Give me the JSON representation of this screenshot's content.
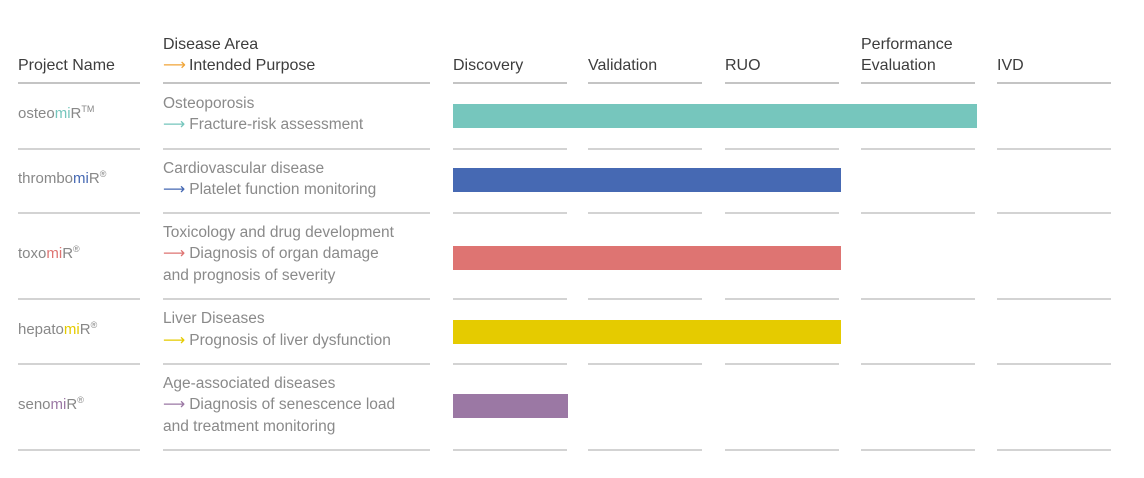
{
  "headers": {
    "project_name": "Project Name",
    "disease_area": "Disease Area",
    "intended_purpose": "Intended Purpose",
    "arrow_glyph": "⟶",
    "arrow_color": "#f0a63a"
  },
  "chart_data": {
    "type": "bar",
    "orientation": "horizontal",
    "stages": [
      "Discovery",
      "Validation",
      "RUO",
      "Performance Evaluation",
      "IVD"
    ],
    "rows": [
      {
        "prefix": "osteo",
        "accent": "mi",
        "suffix": "R",
        "mark": "TM",
        "disease": "Osteoporosis",
        "purpose_lines": [
          "Fracture-risk assessment"
        ],
        "color": "#76c6bd",
        "progress_stages": 3.85
      },
      {
        "prefix": "thrombo",
        "accent": "mi",
        "suffix": "R",
        "mark": "®",
        "disease": "Cardiovascular disease",
        "purpose_lines": [
          "Platelet function monitoring"
        ],
        "color": "#4669b3",
        "progress_stages": 2.85
      },
      {
        "prefix": "toxo",
        "accent": "mi",
        "suffix": "R",
        "mark": "®",
        "disease": "Toxicology and drug development",
        "purpose_lines": [
          "Diagnosis of organ damage",
          "and prognosis of severity"
        ],
        "color": "#de7472",
        "progress_stages": 2.85
      },
      {
        "prefix": "hepato",
        "accent": "mi",
        "suffix": "R",
        "mark": "®",
        "disease": "Liver Diseases",
        "purpose_lines": [
          "Prognosis of liver dysfunction"
        ],
        "color": "#e5cb00",
        "progress_stages": 2.85
      },
      {
        "prefix": "seno",
        "accent": "mi",
        "suffix": "R",
        "mark": "®",
        "disease": "Age-associated diseases",
        "purpose_lines": [
          "Diagnosis of senescence load",
          "and treatment monitoring"
        ],
        "color": "#9b78a4",
        "progress_stages": 0.85
      }
    ]
  }
}
